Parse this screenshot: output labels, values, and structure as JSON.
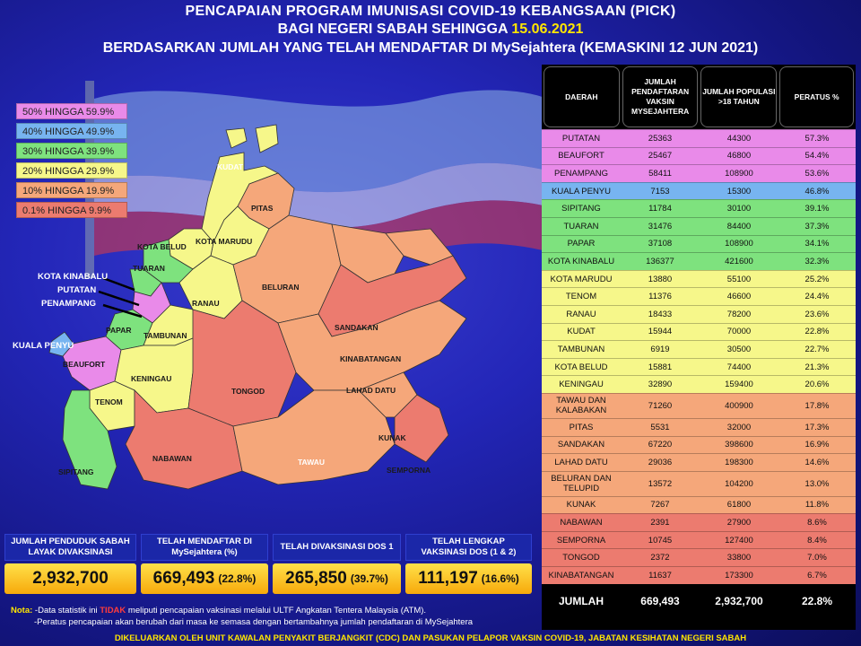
{
  "header": {
    "line1": "PENCAPAIAN PROGRAM IMUNISASI COVID-19 KEBANGSAAN (PICK)",
    "line2_prefix": "BAGI NEGERI SABAH SEHINGGA ",
    "line2_date": "15.06.2021",
    "line3": "BERDASARKAN JUMLAH YANG TELAH MENDAFTAR DI MySejahtera (KEMASKINI 12 JUN 2021)"
  },
  "legend": [
    {
      "label": "50% HINGGA 59.9%",
      "color": "#e98ae9"
    },
    {
      "label": "40% HINGGA 49.9%",
      "color": "#77b4f0"
    },
    {
      "label": "30% HINGGA 39.9%",
      "color": "#7ee27e"
    },
    {
      "label": "20% HINGGA 29.9%",
      "color": "#f6f78a"
    },
    {
      "label": "10% HINGGA 19.9%",
      "color": "#f5a77a"
    },
    {
      "label": "0.1% HINGGA 9.9%",
      "color": "#ec7b6f"
    }
  ],
  "map_labels": {
    "kudat": "KUDAT",
    "pitas": "PITAS",
    "kota_belud": "KOTA BELUD",
    "kota_marudu": "KOTA MARUDU",
    "tuaran": "TUARAN",
    "beluran": "BELURAN",
    "ranau": "RANAU",
    "papar": "PAPAR",
    "tambunan": "TAMBUNAN",
    "sandakan": "SANDAKAN",
    "kinabatangan": "KINABATANGAN",
    "beaufort": "BEAUFORT",
    "keningau": "KENINGAU",
    "tongod": "TONGOD",
    "lahad_datu": "LAHAD DATU",
    "tenom": "TENOM",
    "kunak": "KUNAK",
    "sipitang": "SIPITANG",
    "nabawan": "NABAWAN",
    "tawau": "TAWAU",
    "semporna": "SEMPORNA",
    "kota_kinabalu": "KOTA KINABALU",
    "putatan": "PUTATAN",
    "penampang": "PENAMPANG",
    "kuala_penyu": "KUALA PENYU"
  },
  "stats": [
    {
      "caption": "JUMLAH PENDUDUK SABAH LAYAK DIVAKSINASI",
      "value": "2,932,700",
      "sub": ""
    },
    {
      "caption": "TELAH MENDAFTAR DI MySejahtera (%)",
      "value": "669,493",
      "sub": "(22.8%)"
    },
    {
      "caption": "TELAH DIVAKSINASI DOS 1",
      "value": "265,850",
      "sub": "(39.7%)"
    },
    {
      "caption": "TELAH LENGKAP VAKSINASI DOS (1 & 2)",
      "value": "111,197",
      "sub": "(16.6%)"
    }
  ],
  "nota": {
    "label": "Nota:",
    "line1_a": "-Data statistik ini ",
    "line1_b": "TIDAK",
    "line1_c": " meliputi pencapaian vaksinasi melalui ULTF Angkatan Tentera Malaysia (ATM).",
    "line2": "-Peratus pencapaian akan berubah dari masa ke semasa dengan bertambahnya jumlah pendaftaran di MySejahtera"
  },
  "footer": "DIKELUARKAN OLEH UNIT KAWALAN PENYAKIT BERJANGKIT (CDC) DAN PASUKAN PELAPOR VAKSIN COVID-19, JABATAN KESIHATAN NEGERI SABAH",
  "table": {
    "headers": [
      "DAERAH",
      "JUMLAH PENDAFTARAN VAKSIN MYSEJAHTERA",
      "JUMLAH POPULASI >18 TAHUN",
      "PERATUS %"
    ],
    "rows": [
      {
        "daerah": "PUTATAN",
        "daftar": "25363",
        "populasi": "44300",
        "peratus": "57.3%",
        "color": "#e98ae9"
      },
      {
        "daerah": "BEAUFORT",
        "daftar": "25467",
        "populasi": "46800",
        "peratus": "54.4%",
        "color": "#e98ae9"
      },
      {
        "daerah": "PENAMPANG",
        "daftar": "58411",
        "populasi": "108900",
        "peratus": "53.6%",
        "color": "#e98ae9"
      },
      {
        "daerah": "KUALA PENYU",
        "daftar": "7153",
        "populasi": "15300",
        "peratus": "46.8%",
        "color": "#77b4f0"
      },
      {
        "daerah": "SIPITANG",
        "daftar": "11784",
        "populasi": "30100",
        "peratus": "39.1%",
        "color": "#7ee27e"
      },
      {
        "daerah": "TUARAN",
        "daftar": "31476",
        "populasi": "84400",
        "peratus": "37.3%",
        "color": "#7ee27e"
      },
      {
        "daerah": "PAPAR",
        "daftar": "37108",
        "populasi": "108900",
        "peratus": "34.1%",
        "color": "#7ee27e"
      },
      {
        "daerah": "KOTA KINABALU",
        "daftar": "136377",
        "populasi": "421600",
        "peratus": "32.3%",
        "color": "#7ee27e"
      },
      {
        "daerah": "KOTA MARUDU",
        "daftar": "13880",
        "populasi": "55100",
        "peratus": "25.2%",
        "color": "#f6f78a"
      },
      {
        "daerah": "TENOM",
        "daftar": "11376",
        "populasi": "46600",
        "peratus": "24.4%",
        "color": "#f6f78a"
      },
      {
        "daerah": "RANAU",
        "daftar": "18433",
        "populasi": "78200",
        "peratus": "23.6%",
        "color": "#f6f78a"
      },
      {
        "daerah": "KUDAT",
        "daftar": "15944",
        "populasi": "70000",
        "peratus": "22.8%",
        "color": "#f6f78a"
      },
      {
        "daerah": "TAMBUNAN",
        "daftar": "6919",
        "populasi": "30500",
        "peratus": "22.7%",
        "color": "#f6f78a"
      },
      {
        "daerah": "KOTA BELUD",
        "daftar": "15881",
        "populasi": "74400",
        "peratus": "21.3%",
        "color": "#f6f78a"
      },
      {
        "daerah": "KENINGAU",
        "daftar": "32890",
        "populasi": "159400",
        "peratus": "20.6%",
        "color": "#f6f78a"
      },
      {
        "daerah": "TAWAU DAN KALABAKAN",
        "daftar": "71260",
        "populasi": "400900",
        "peratus": "17.8%",
        "color": "#f5a77a",
        "tall": true
      },
      {
        "daerah": "PITAS",
        "daftar": "5531",
        "populasi": "32000",
        "peratus": "17.3%",
        "color": "#f5a77a"
      },
      {
        "daerah": "SANDAKAN",
        "daftar": "67220",
        "populasi": "398600",
        "peratus": "16.9%",
        "color": "#f5a77a"
      },
      {
        "daerah": "LAHAD DATU",
        "daftar": "29036",
        "populasi": "198300",
        "peratus": "14.6%",
        "color": "#f5a77a"
      },
      {
        "daerah": "BELURAN DAN TELUPID",
        "daftar": "13572",
        "populasi": "104200",
        "peratus": "13.0%",
        "color": "#f5a77a",
        "tall": true
      },
      {
        "daerah": "KUNAK",
        "daftar": "7267",
        "populasi": "61800",
        "peratus": "11.8%",
        "color": "#f5a77a"
      },
      {
        "daerah": "NABAWAN",
        "daftar": "2391",
        "populasi": "27900",
        "peratus": "8.6%",
        "color": "#ec7b6f"
      },
      {
        "daerah": "SEMPORNA",
        "daftar": "10745",
        "populasi": "127400",
        "peratus": "8.4%",
        "color": "#ec7b6f"
      },
      {
        "daerah": "TONGOD",
        "daftar": "2372",
        "populasi": "33800",
        "peratus": "7.0%",
        "color": "#ec7b6f"
      },
      {
        "daerah": "KINABATANGAN",
        "daftar": "11637",
        "populasi": "173300",
        "peratus": "6.7%",
        "color": "#ec7b6f"
      }
    ],
    "total": {
      "label": "JUMLAH",
      "daftar": "669,493",
      "populasi": "2,932,700",
      "peratus": "22.8%"
    }
  }
}
